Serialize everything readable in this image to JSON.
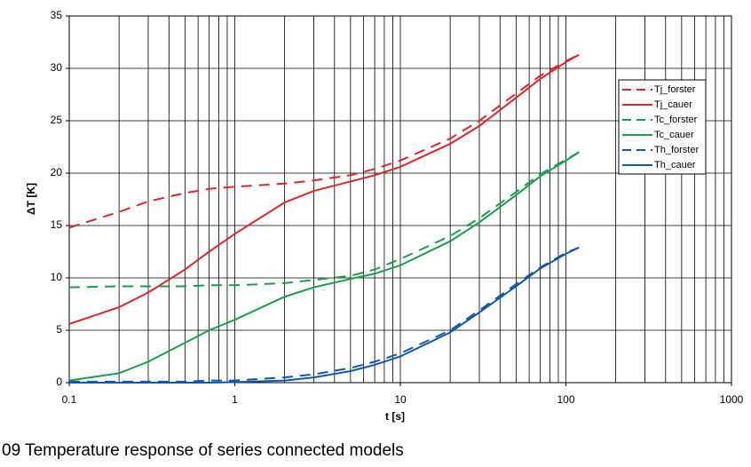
{
  "chart_data": {
    "type": "line",
    "caption": "09 Temperature response of series connected models",
    "xlabel": "t [s]",
    "ylabel": "ΔT [K]",
    "xscale": "log",
    "xlim": [
      0.1,
      1000
    ],
    "xticks": [
      0.1,
      1,
      10,
      100,
      1000
    ],
    "ylim": [
      0,
      35
    ],
    "yticks": [
      0,
      5,
      10,
      15,
      20,
      25,
      30,
      35
    ],
    "grid": true,
    "minor_grid": true,
    "legend": "upper right",
    "x": [
      0.1,
      0.2,
      0.3,
      0.5,
      0.7,
      1,
      2,
      3,
      5,
      7,
      10,
      20,
      30,
      50,
      70,
      100,
      120
    ],
    "series": [
      {
        "name": "Tj_forster",
        "color": "#e0242b",
        "style": "dashed",
        "values": [
          14.8,
          16.3,
          17.3,
          18.1,
          18.5,
          18.7,
          19.0,
          19.3,
          19.8,
          20.4,
          21.2,
          23.3,
          25.0,
          27.6,
          29.3,
          30.7,
          31.3
        ]
      },
      {
        "name": "Tj_cauer",
        "color": "#e0242b",
        "style": "solid",
        "values": [
          5.6,
          7.2,
          8.6,
          10.8,
          12.5,
          14.2,
          17.2,
          18.3,
          19.2,
          19.8,
          20.6,
          22.8,
          24.5,
          27.2,
          29.0,
          30.6,
          31.3
        ]
      },
      {
        "name": "Tc_forster",
        "color": "#1a9e4b",
        "style": "dashed",
        "values": [
          9.1,
          9.2,
          9.2,
          9.2,
          9.3,
          9.3,
          9.5,
          9.8,
          10.2,
          10.8,
          11.8,
          14.0,
          15.7,
          18.2,
          19.9,
          21.3,
          22.0
        ]
      },
      {
        "name": "Tc_cauer",
        "color": "#1a9e4b",
        "style": "solid",
        "values": [
          0.2,
          0.9,
          2.0,
          3.8,
          5.0,
          6.0,
          8.2,
          9.1,
          9.9,
          10.4,
          11.2,
          13.5,
          15.3,
          17.9,
          19.7,
          21.2,
          22.0
        ]
      },
      {
        "name": "Th_forster",
        "color": "#1057a8",
        "style": "dashed",
        "values": [
          0.1,
          0.1,
          0.1,
          0.1,
          0.2,
          0.2,
          0.5,
          0.8,
          1.4,
          2.0,
          2.8,
          5.0,
          6.9,
          9.4,
          11.0,
          12.4,
          12.9
        ]
      },
      {
        "name": "Th_cauer",
        "color": "#1057a8",
        "style": "solid",
        "values": [
          0.0,
          0.0,
          0.0,
          0.0,
          0.0,
          0.05,
          0.2,
          0.5,
          1.1,
          1.7,
          2.5,
          4.8,
          6.7,
          9.2,
          10.9,
          12.3,
          12.9
        ]
      }
    ]
  }
}
